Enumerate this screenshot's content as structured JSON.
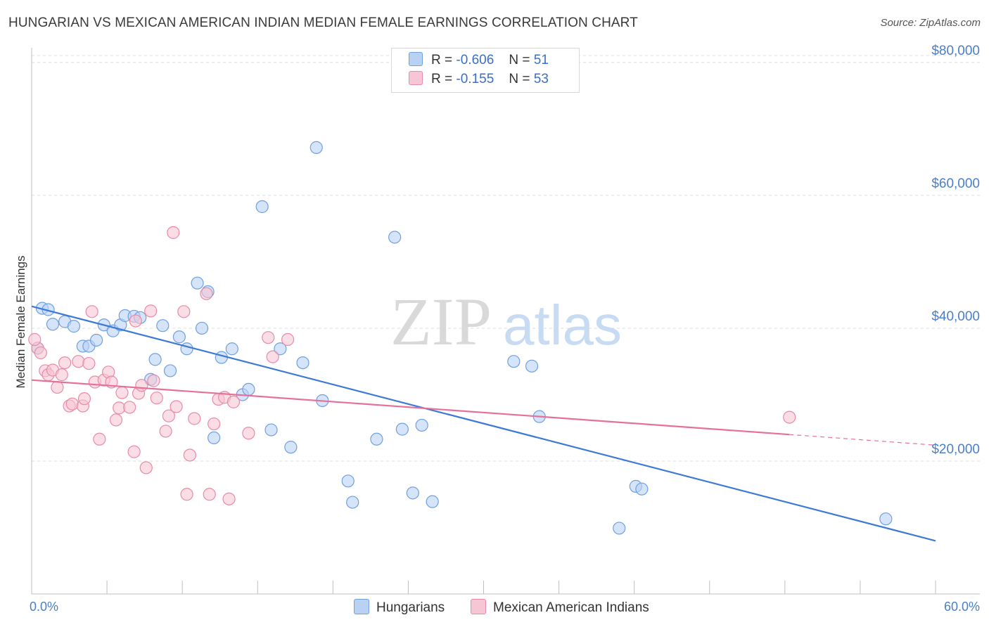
{
  "title": "HUNGARIAN VS MEXICAN AMERICAN INDIAN MEDIAN FEMALE EARNINGS CORRELATION CHART",
  "source": "Source: ZipAtlas.com",
  "watermark": {
    "zip": "ZIP",
    "atlas": "atlas"
  },
  "legend": {
    "rows": [
      {
        "r_label": "R =",
        "r_value": "-0.606",
        "n_label": "N =",
        "n_value": "51",
        "color": "#6fa0e0",
        "fill": "#b9d2f3"
      },
      {
        "r_label": "R =",
        "r_value": "-0.155",
        "n_label": "N =",
        "n_value": "53",
        "color": "#e98aa8",
        "fill": "#f7c6d4"
      }
    ]
  },
  "bottom_legend": [
    {
      "label": "Hungarians",
      "fill": "#b9d2f3",
      "stroke": "#6fa0e0"
    },
    {
      "label": "Mexican American Indians",
      "fill": "#f7c6d4",
      "stroke": "#e98aa8"
    }
  ],
  "chart_data": {
    "type": "scatter",
    "title": "HUNGARIAN VS MEXICAN AMERICAN INDIAN MEDIAN FEMALE EARNINGS CORRELATION CHART",
    "xlabel": "",
    "ylabel": "Median Female Earnings",
    "xlim": [
      0,
      60
    ],
    "ylim": [
      0,
      82000
    ],
    "x_tick_labels": [
      "0.0%",
      "60.0%"
    ],
    "y_ticks": [
      20000,
      40000,
      60000,
      80000
    ],
    "y_tick_labels": [
      "$20,000",
      "$40,000",
      "$60,000",
      "$80,000"
    ],
    "grid": true,
    "legend_position": "top-center",
    "series": [
      {
        "name": "Hungarians",
        "color": "#3d7ad6",
        "point_fill": "#b9d2f3",
        "point_stroke": "#6fa0e0",
        "trend": {
          "x": [
            0,
            60
          ],
          "y": [
            43300,
            8000
          ]
        },
        "points": [
          [
            0.4,
            37000
          ],
          [
            0.7,
            43000
          ],
          [
            1.1,
            42800
          ],
          [
            1.4,
            40600
          ],
          [
            2.2,
            41000
          ],
          [
            2.8,
            40300
          ],
          [
            3.4,
            37300
          ],
          [
            3.8,
            37300
          ],
          [
            4.3,
            38200
          ],
          [
            4.8,
            40500
          ],
          [
            5.4,
            39600
          ],
          [
            5.9,
            40500
          ],
          [
            6.2,
            41900
          ],
          [
            6.8,
            41800
          ],
          [
            7.2,
            41600
          ],
          [
            7.9,
            32300
          ],
          [
            8.2,
            35300
          ],
          [
            8.7,
            40400
          ],
          [
            9.2,
            33600
          ],
          [
            9.8,
            38700
          ],
          [
            10.3,
            36900
          ],
          [
            11.0,
            46800
          ],
          [
            11.3,
            40000
          ],
          [
            11.7,
            45500
          ],
          [
            12.1,
            23500
          ],
          [
            12.6,
            35600
          ],
          [
            13.3,
            36900
          ],
          [
            14.0,
            30000
          ],
          [
            14.4,
            30800
          ],
          [
            15.3,
            58300
          ],
          [
            15.9,
            24700
          ],
          [
            16.5,
            36900
          ],
          [
            17.2,
            22100
          ],
          [
            18.0,
            34800
          ],
          [
            18.9,
            67200
          ],
          [
            19.3,
            29100
          ],
          [
            21.0,
            17000
          ],
          [
            21.3,
            13800
          ],
          [
            22.9,
            23300
          ],
          [
            24.1,
            53700
          ],
          [
            24.6,
            24800
          ],
          [
            25.3,
            15200
          ],
          [
            25.9,
            25400
          ],
          [
            26.6,
            13900
          ],
          [
            32.0,
            35000
          ],
          [
            33.2,
            34300
          ],
          [
            33.7,
            26700
          ],
          [
            39.0,
            9900
          ],
          [
            40.1,
            16200
          ],
          [
            40.5,
            15800
          ],
          [
            56.7,
            11300
          ]
        ]
      },
      {
        "name": "Mexican American Indians",
        "color": "#e5719a",
        "point_fill": "#f7c6d4",
        "point_stroke": "#e98aa8",
        "trend": {
          "x": [
            0,
            50.3
          ],
          "y": [
            32200,
            24000
          ]
        },
        "trend_dashed": {
          "x": [
            50.3,
            60
          ],
          "y": [
            24000,
            22400
          ]
        },
        "points": [
          [
            0.4,
            37000
          ],
          [
            0.6,
            36300
          ],
          [
            0.9,
            33600
          ],
          [
            1.1,
            33000
          ],
          [
            1.4,
            33700
          ],
          [
            1.7,
            31100
          ],
          [
            2.0,
            33000
          ],
          [
            2.2,
            34800
          ],
          [
            2.5,
            28300
          ],
          [
            2.7,
            28600
          ],
          [
            3.1,
            35000
          ],
          [
            3.4,
            28300
          ],
          [
            3.5,
            29400
          ],
          [
            3.8,
            34700
          ],
          [
            4.0,
            42500
          ],
          [
            4.2,
            31900
          ],
          [
            4.5,
            23300
          ],
          [
            4.8,
            32200
          ],
          [
            5.1,
            33400
          ],
          [
            5.3,
            31900
          ],
          [
            5.6,
            26200
          ],
          [
            5.8,
            28000
          ],
          [
            6.0,
            30300
          ],
          [
            6.5,
            28100
          ],
          [
            6.8,
            21400
          ],
          [
            6.9,
            41100
          ],
          [
            7.1,
            30200
          ],
          [
            7.3,
            31400
          ],
          [
            7.6,
            19000
          ],
          [
            7.9,
            42600
          ],
          [
            8.1,
            32100
          ],
          [
            8.3,
            29500
          ],
          [
            8.9,
            24500
          ],
          [
            9.1,
            26800
          ],
          [
            9.4,
            54400
          ],
          [
            9.6,
            28200
          ],
          [
            10.1,
            42500
          ],
          [
            10.3,
            15000
          ],
          [
            10.5,
            20900
          ],
          [
            10.8,
            26400
          ],
          [
            11.6,
            45200
          ],
          [
            11.8,
            15000
          ],
          [
            12.1,
            25600
          ],
          [
            12.4,
            29300
          ],
          [
            12.8,
            29600
          ],
          [
            13.1,
            14300
          ],
          [
            13.4,
            28900
          ],
          [
            14.4,
            24200
          ],
          [
            15.7,
            38600
          ],
          [
            16.0,
            35700
          ],
          [
            17.0,
            38300
          ],
          [
            50.3,
            26600
          ],
          [
            0.2,
            38300
          ]
        ]
      }
    ]
  }
}
